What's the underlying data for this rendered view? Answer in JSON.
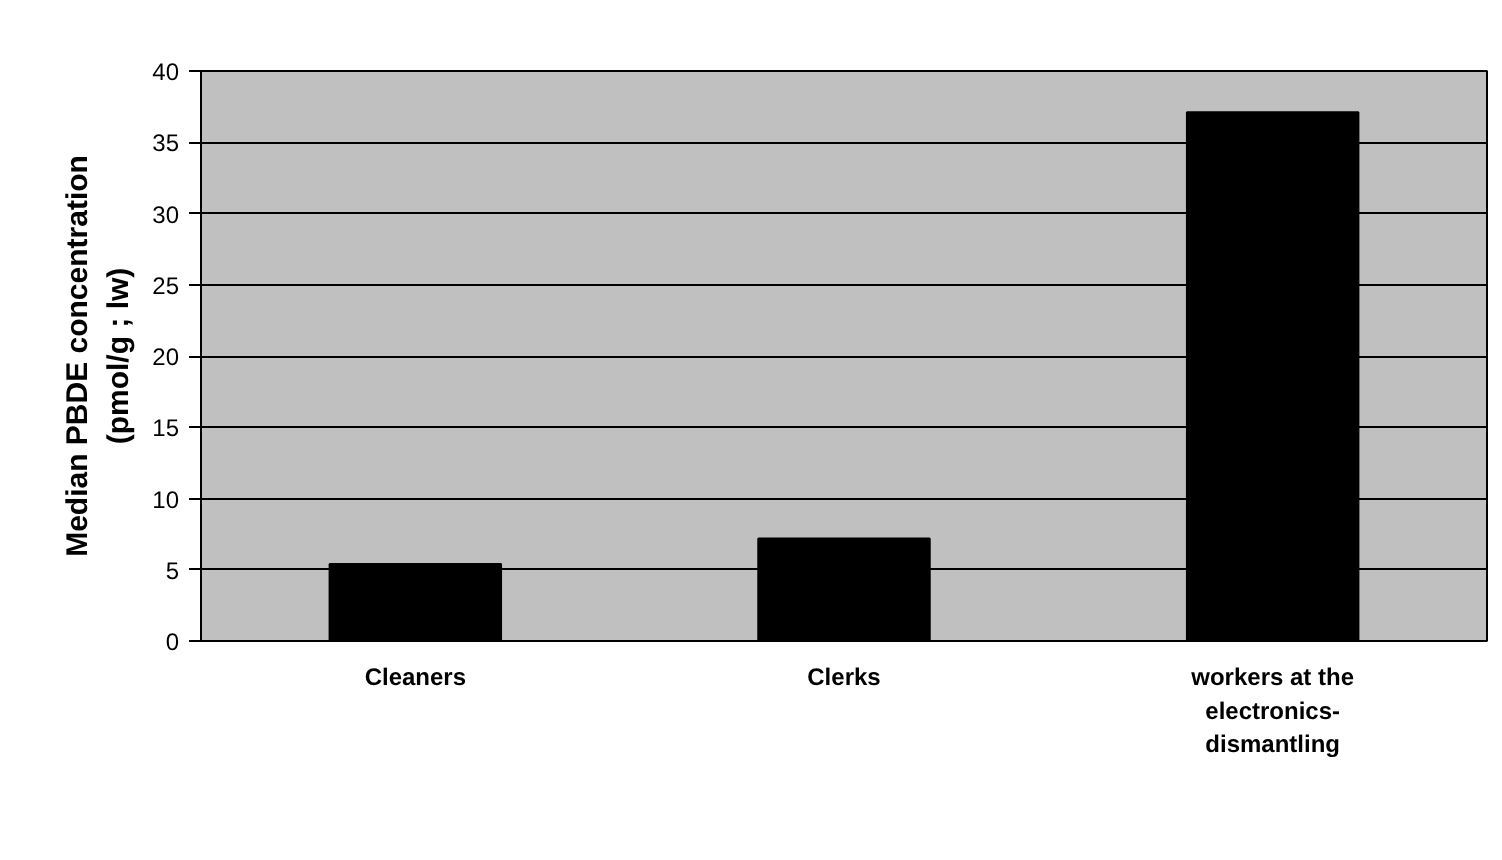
{
  "chart_data": {
    "type": "bar",
    "ylabel": "Median PBDE concentration (pmol/g ; lw)",
    "categories": [
      "Cleaners",
      "Clerks",
      "workers at the electronics-dismantling"
    ],
    "values": [
      5.4,
      7.2,
      37.1
    ],
    "color": "#000000",
    "ylim": [
      0,
      40
    ],
    "yticks": [
      0,
      5,
      10,
      15,
      20,
      25,
      30,
      35,
      40
    ],
    "grid": "y"
  }
}
